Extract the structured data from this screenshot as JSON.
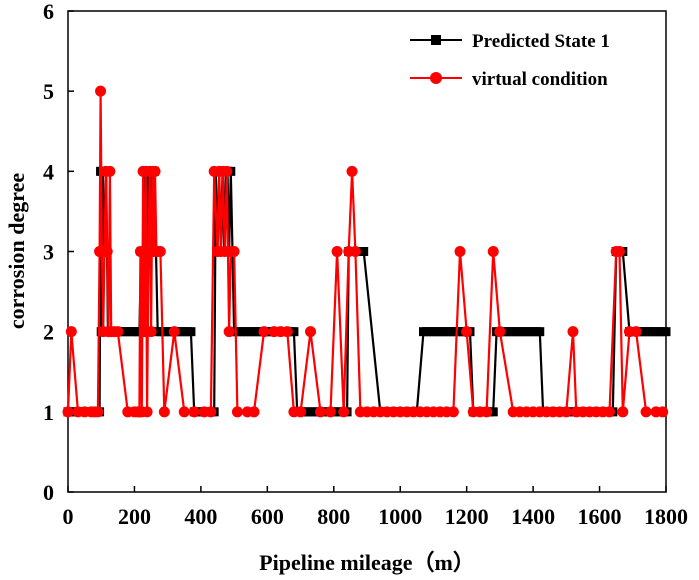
{
  "chart_data": {
    "type": "line",
    "xlabel": "Pipeline mileage（m）",
    "ylabel": "corrosion degree",
    "xlim": [
      0,
      1800
    ],
    "ylim": [
      0,
      6
    ],
    "xticks": [
      0,
      200,
      400,
      600,
      800,
      1000,
      1200,
      1400,
      1600,
      1800
    ],
    "yticks": [
      0,
      1,
      2,
      3,
      4,
      5,
      6
    ],
    "grid": false,
    "legend_position": "top-right",
    "series": [
      {
        "name": "Predicted State 1",
        "color": "#000000",
        "marker": "square",
        "points": [
          [
            0,
            1
          ],
          [
            10,
            1
          ],
          [
            20,
            1
          ],
          [
            30,
            1
          ],
          [
            40,
            1
          ],
          [
            50,
            1
          ],
          [
            60,
            1
          ],
          [
            70,
            1
          ],
          [
            80,
            1
          ],
          [
            90,
            1
          ],
          [
            95,
            1
          ],
          [
            98,
            4
          ],
          [
            100,
            2
          ],
          [
            105,
            4
          ],
          [
            110,
            3
          ],
          [
            115,
            4
          ],
          [
            120,
            2
          ],
          [
            125,
            2
          ],
          [
            130,
            2
          ],
          [
            140,
            2
          ],
          [
            150,
            2
          ],
          [
            160,
            2
          ],
          [
            170,
            2
          ],
          [
            180,
            2
          ],
          [
            190,
            2
          ],
          [
            200,
            2
          ],
          [
            210,
            2
          ],
          [
            215,
            2
          ],
          [
            220,
            3
          ],
          [
            225,
            2
          ],
          [
            230,
            4
          ],
          [
            233,
            3
          ],
          [
            236,
            4
          ],
          [
            240,
            2
          ],
          [
            243,
            4
          ],
          [
            246,
            3
          ],
          [
            250,
            4
          ],
          [
            255,
            3
          ],
          [
            260,
            4
          ],
          [
            265,
            3
          ],
          [
            270,
            2
          ],
          [
            280,
            2
          ],
          [
            290,
            2
          ],
          [
            300,
            2
          ],
          [
            310,
            2
          ],
          [
            320,
            2
          ],
          [
            330,
            2
          ],
          [
            340,
            2
          ],
          [
            350,
            2
          ],
          [
            360,
            2
          ],
          [
            370,
            2
          ],
          [
            380,
            1
          ],
          [
            390,
            1
          ],
          [
            400,
            1
          ],
          [
            410,
            1
          ],
          [
            420,
            1
          ],
          [
            430,
            1
          ],
          [
            440,
            1
          ],
          [
            445,
            4
          ],
          [
            450,
            3
          ],
          [
            455,
            4
          ],
          [
            460,
            3
          ],
          [
            465,
            4
          ],
          [
            470,
            3
          ],
          [
            475,
            4
          ],
          [
            480,
            4
          ],
          [
            485,
            3
          ],
          [
            490,
            4
          ],
          [
            495,
            3
          ],
          [
            500,
            2
          ],
          [
            510,
            2
          ],
          [
            520,
            2
          ],
          [
            530,
            2
          ],
          [
            540,
            2
          ],
          [
            550,
            2
          ],
          [
            560,
            2
          ],
          [
            570,
            2
          ],
          [
            580,
            2
          ],
          [
            590,
            2
          ],
          [
            600,
            2
          ],
          [
            610,
            2
          ],
          [
            620,
            2
          ],
          [
            630,
            2
          ],
          [
            640,
            2
          ],
          [
            650,
            2
          ],
          [
            660,
            2
          ],
          [
            670,
            2
          ],
          [
            680,
            2
          ],
          [
            690,
            1
          ],
          [
            700,
            1
          ],
          [
            710,
            1
          ],
          [
            720,
            1
          ],
          [
            730,
            1
          ],
          [
            740,
            1
          ],
          [
            750,
            1
          ],
          [
            760,
            1
          ],
          [
            770,
            1
          ],
          [
            780,
            1
          ],
          [
            790,
            1
          ],
          [
            800,
            1
          ],
          [
            810,
            1
          ],
          [
            820,
            1
          ],
          [
            830,
            1
          ],
          [
            840,
            1
          ],
          [
            845,
            3
          ],
          [
            850,
            3
          ],
          [
            860,
            3
          ],
          [
            870,
            3
          ],
          [
            880,
            3
          ],
          [
            890,
            3
          ],
          [
            940,
            1
          ],
          [
            950,
            1
          ],
          [
            960,
            1
          ],
          [
            970,
            1
          ],
          [
            980,
            1
          ],
          [
            990,
            1
          ],
          [
            1000,
            1
          ],
          [
            1010,
            1
          ],
          [
            1020,
            1
          ],
          [
            1030,
            1
          ],
          [
            1040,
            1
          ],
          [
            1050,
            1
          ],
          [
            1070,
            2
          ],
          [
            1080,
            2
          ],
          [
            1090,
            2
          ],
          [
            1100,
            2
          ],
          [
            1110,
            2
          ],
          [
            1120,
            2
          ],
          [
            1130,
            2
          ],
          [
            1140,
            2
          ],
          [
            1150,
            2
          ],
          [
            1160,
            2
          ],
          [
            1170,
            2
          ],
          [
            1180,
            2
          ],
          [
            1190,
            2
          ],
          [
            1200,
            2
          ],
          [
            1210,
            2
          ],
          [
            1220,
            1
          ],
          [
            1230,
            1
          ],
          [
            1240,
            1
          ],
          [
            1250,
            1
          ],
          [
            1260,
            1
          ],
          [
            1270,
            1
          ],
          [
            1280,
            1
          ],
          [
            1290,
            2
          ],
          [
            1300,
            2
          ],
          [
            1310,
            2
          ],
          [
            1320,
            2
          ],
          [
            1330,
            2
          ],
          [
            1340,
            2
          ],
          [
            1350,
            2
          ],
          [
            1360,
            2
          ],
          [
            1370,
            2
          ],
          [
            1380,
            2
          ],
          [
            1390,
            2
          ],
          [
            1400,
            2
          ],
          [
            1410,
            2
          ],
          [
            1420,
            2
          ],
          [
            1430,
            1
          ],
          [
            1440,
            1
          ],
          [
            1450,
            1
          ],
          [
            1460,
            1
          ],
          [
            1470,
            1
          ],
          [
            1480,
            1
          ],
          [
            1490,
            1
          ],
          [
            1500,
            1
          ],
          [
            1510,
            1
          ],
          [
            1520,
            1
          ],
          [
            1530,
            1
          ],
          [
            1540,
            1
          ],
          [
            1550,
            1
          ],
          [
            1560,
            1
          ],
          [
            1570,
            1
          ],
          [
            1580,
            1
          ],
          [
            1590,
            1
          ],
          [
            1600,
            1
          ],
          [
            1610,
            1
          ],
          [
            1620,
            1
          ],
          [
            1630,
            1
          ],
          [
            1640,
            1
          ],
          [
            1650,
            3
          ],
          [
            1660,
            3
          ],
          [
            1670,
            3
          ],
          [
            1690,
            2
          ],
          [
            1700,
            2
          ],
          [
            1710,
            2
          ],
          [
            1720,
            2
          ],
          [
            1730,
            2
          ],
          [
            1740,
            2
          ],
          [
            1750,
            2
          ],
          [
            1760,
            2
          ],
          [
            1770,
            2
          ],
          [
            1780,
            2
          ],
          [
            1790,
            2
          ],
          [
            1800,
            2
          ]
        ]
      },
      {
        "name": "virtual condition",
        "color": "#ff0000",
        "marker": "circle",
        "points": [
          [
            0,
            1
          ],
          [
            10,
            2
          ],
          [
            30,
            1
          ],
          [
            50,
            1
          ],
          [
            70,
            1
          ],
          [
            80,
            1
          ],
          [
            90,
            1
          ],
          [
            95,
            3
          ],
          [
            98,
            5
          ],
          [
            102,
            3
          ],
          [
            106,
            2
          ],
          [
            110,
            3
          ],
          [
            114,
            4
          ],
          [
            118,
            3
          ],
          [
            122,
            2
          ],
          [
            126,
            4
          ],
          [
            130,
            2
          ],
          [
            140,
            2
          ],
          [
            150,
            2
          ],
          [
            180,
            1
          ],
          [
            200,
            1
          ],
          [
            210,
            1
          ],
          [
            215,
            1
          ],
          [
            218,
            3
          ],
          [
            222,
            1
          ],
          [
            226,
            4
          ],
          [
            230,
            2
          ],
          [
            234,
            4
          ],
          [
            238,
            1
          ],
          [
            242,
            3
          ],
          [
            246,
            4
          ],
          [
            250,
            2
          ],
          [
            254,
            4
          ],
          [
            258,
            3
          ],
          [
            262,
            4
          ],
          [
            266,
            3
          ],
          [
            270,
            3
          ],
          [
            278,
            3
          ],
          [
            290,
            1
          ],
          [
            320,
            2
          ],
          [
            350,
            1
          ],
          [
            380,
            1
          ],
          [
            410,
            1
          ],
          [
            430,
            1
          ],
          [
            440,
            4
          ],
          [
            450,
            3
          ],
          [
            455,
            4
          ],
          [
            460,
            3
          ],
          [
            466,
            4
          ],
          [
            472,
            3
          ],
          [
            478,
            4
          ],
          [
            485,
            2
          ],
          [
            490,
            3
          ],
          [
            500,
            3
          ],
          [
            510,
            1
          ],
          [
            540,
            1
          ],
          [
            560,
            1
          ],
          [
            590,
            2
          ],
          [
            620,
            2
          ],
          [
            640,
            2
          ],
          [
            660,
            2
          ],
          [
            680,
            1
          ],
          [
            700,
            1
          ],
          [
            730,
            2
          ],
          [
            760,
            1
          ],
          [
            790,
            1
          ],
          [
            810,
            3
          ],
          [
            830,
            1
          ],
          [
            845,
            3
          ],
          [
            855,
            4
          ],
          [
            865,
            3
          ],
          [
            880,
            1
          ],
          [
            900,
            1
          ],
          [
            920,
            1
          ],
          [
            940,
            1
          ],
          [
            960,
            1
          ],
          [
            980,
            1
          ],
          [
            1000,
            1
          ],
          [
            1020,
            1
          ],
          [
            1040,
            1
          ],
          [
            1060,
            1
          ],
          [
            1080,
            1
          ],
          [
            1100,
            1
          ],
          [
            1120,
            1
          ],
          [
            1140,
            1
          ],
          [
            1160,
            1
          ],
          [
            1180,
            3
          ],
          [
            1200,
            2
          ],
          [
            1220,
            1
          ],
          [
            1240,
            1
          ],
          [
            1260,
            1
          ],
          [
            1280,
            3
          ],
          [
            1300,
            2
          ],
          [
            1340,
            1
          ],
          [
            1360,
            1
          ],
          [
            1380,
            1
          ],
          [
            1400,
            1
          ],
          [
            1420,
            1
          ],
          [
            1440,
            1
          ],
          [
            1460,
            1
          ],
          [
            1480,
            1
          ],
          [
            1500,
            1
          ],
          [
            1520,
            2
          ],
          [
            1530,
            1
          ],
          [
            1550,
            1
          ],
          [
            1570,
            1
          ],
          [
            1590,
            1
          ],
          [
            1610,
            1
          ],
          [
            1630,
            1
          ],
          [
            1650,
            3
          ],
          [
            1660,
            3
          ],
          [
            1670,
            1
          ],
          [
            1690,
            2
          ],
          [
            1710,
            2
          ],
          [
            1740,
            1
          ],
          [
            1770,
            1
          ],
          [
            1790,
            1
          ]
        ]
      }
    ]
  }
}
